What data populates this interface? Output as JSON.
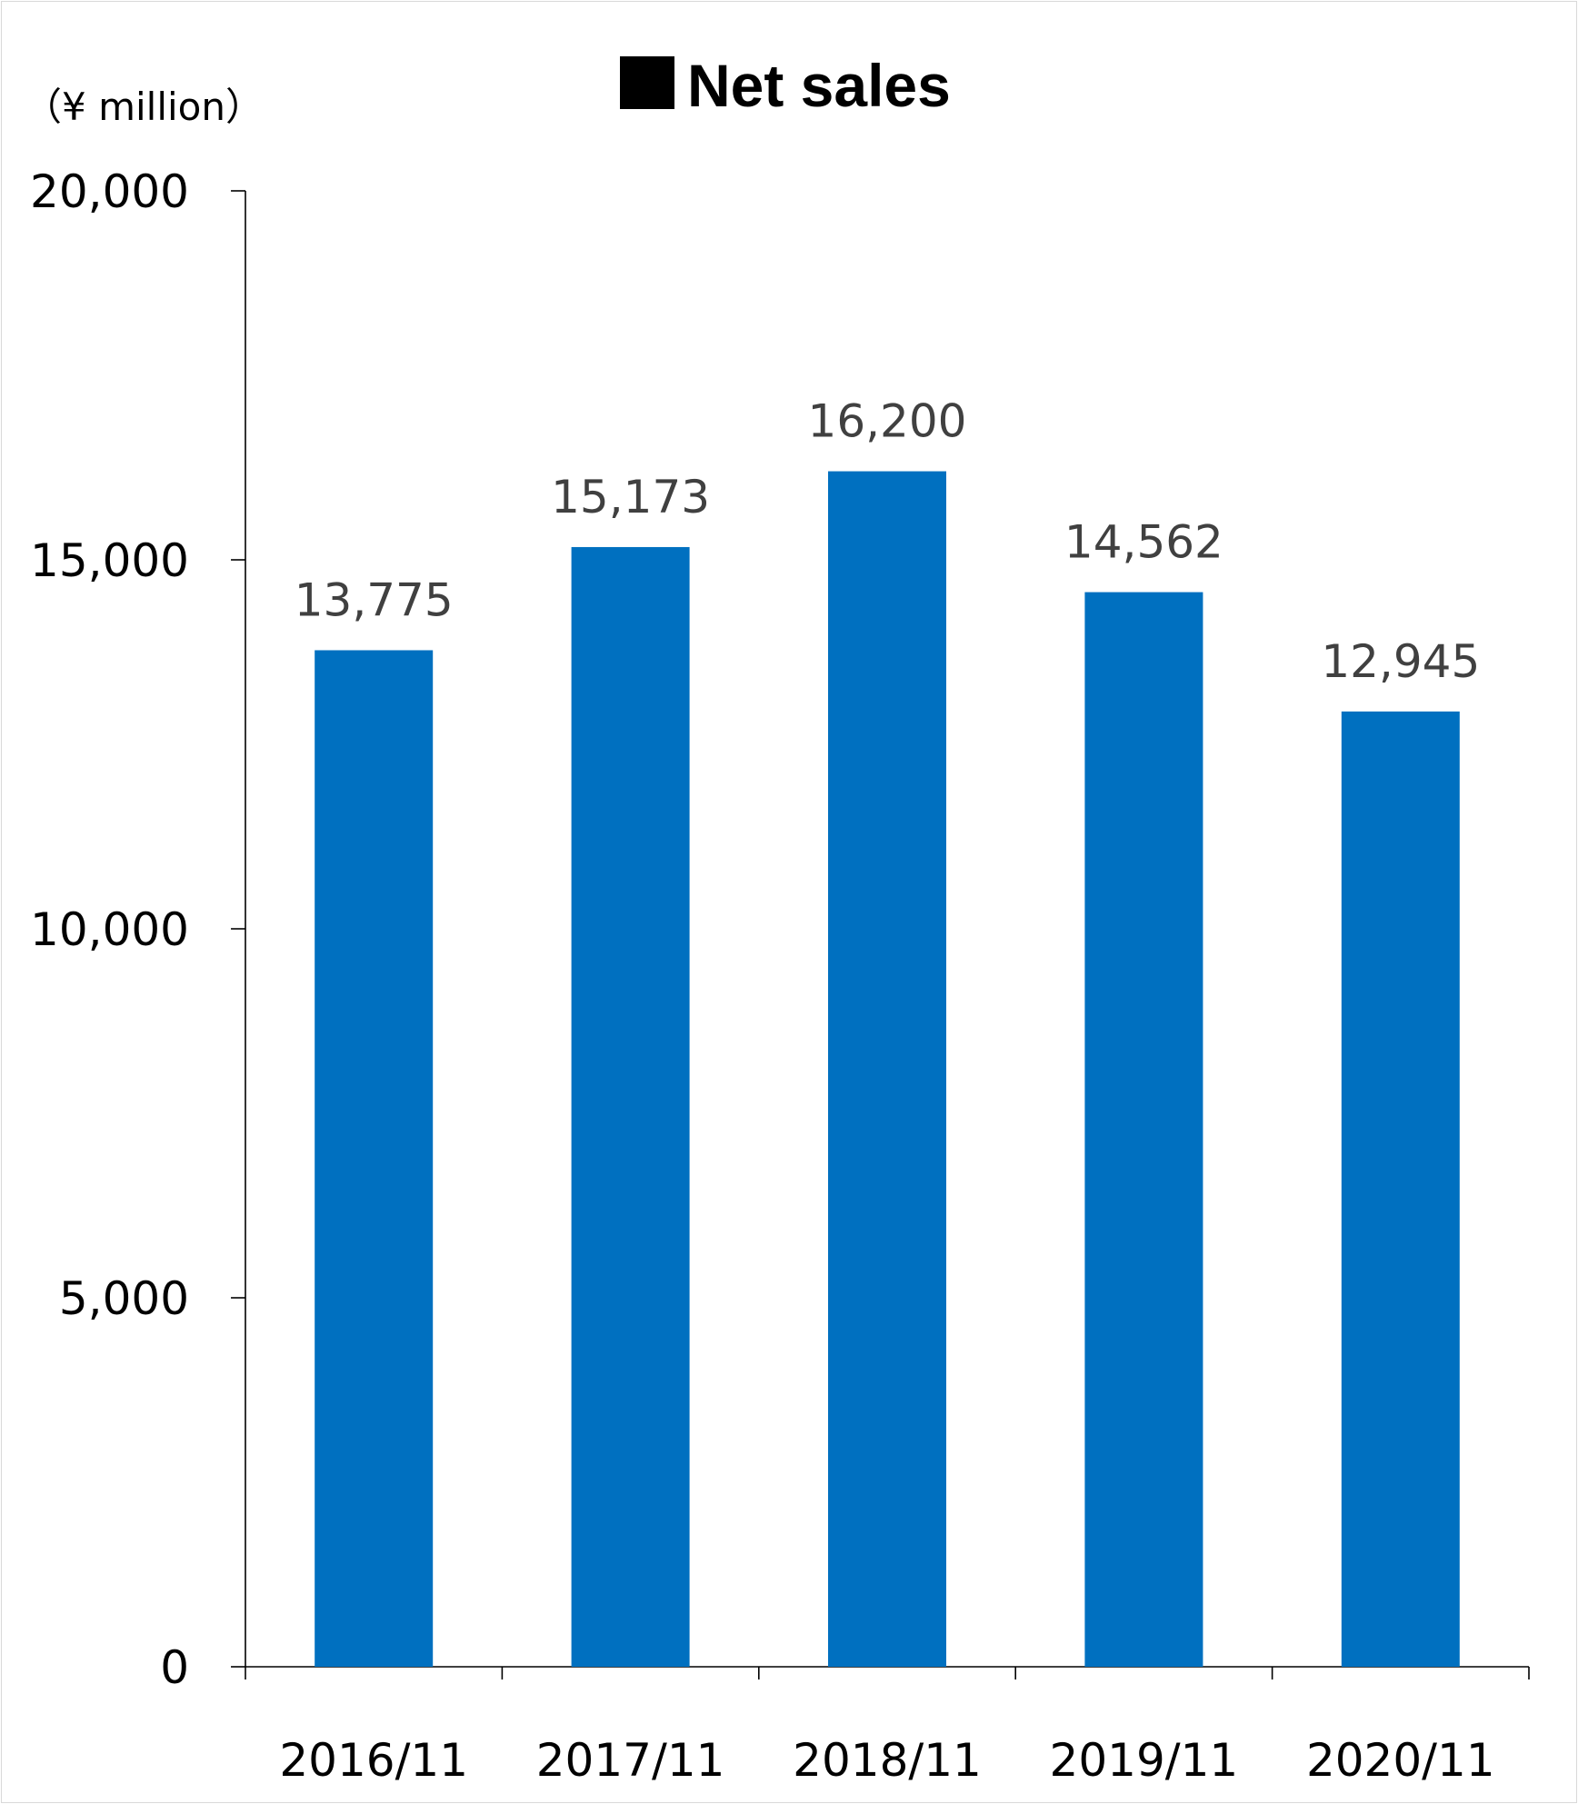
{
  "chart_data": {
    "type": "bar",
    "title": "Net sales",
    "legend_marker_color": "#000000",
    "unit_label": "（¥ million）",
    "categories": [
      "2016/11",
      "2017/11",
      "2018/11",
      "2019/11",
      "2020/11"
    ],
    "values": [
      13775,
      15173,
      16200,
      14562,
      12945
    ],
    "value_labels": [
      "13,775",
      "15,173",
      "16,200",
      "14,562",
      "12,945"
    ],
    "ylim": [
      0,
      20000
    ],
    "yticks": [
      0,
      5000,
      10000,
      15000,
      20000
    ],
    "ytick_labels": [
      "0",
      "5,000",
      "10,000",
      "15,000",
      "20,000"
    ],
    "bar_color": "#0070C0",
    "grid": false,
    "xlabel": "",
    "ylabel": ""
  }
}
